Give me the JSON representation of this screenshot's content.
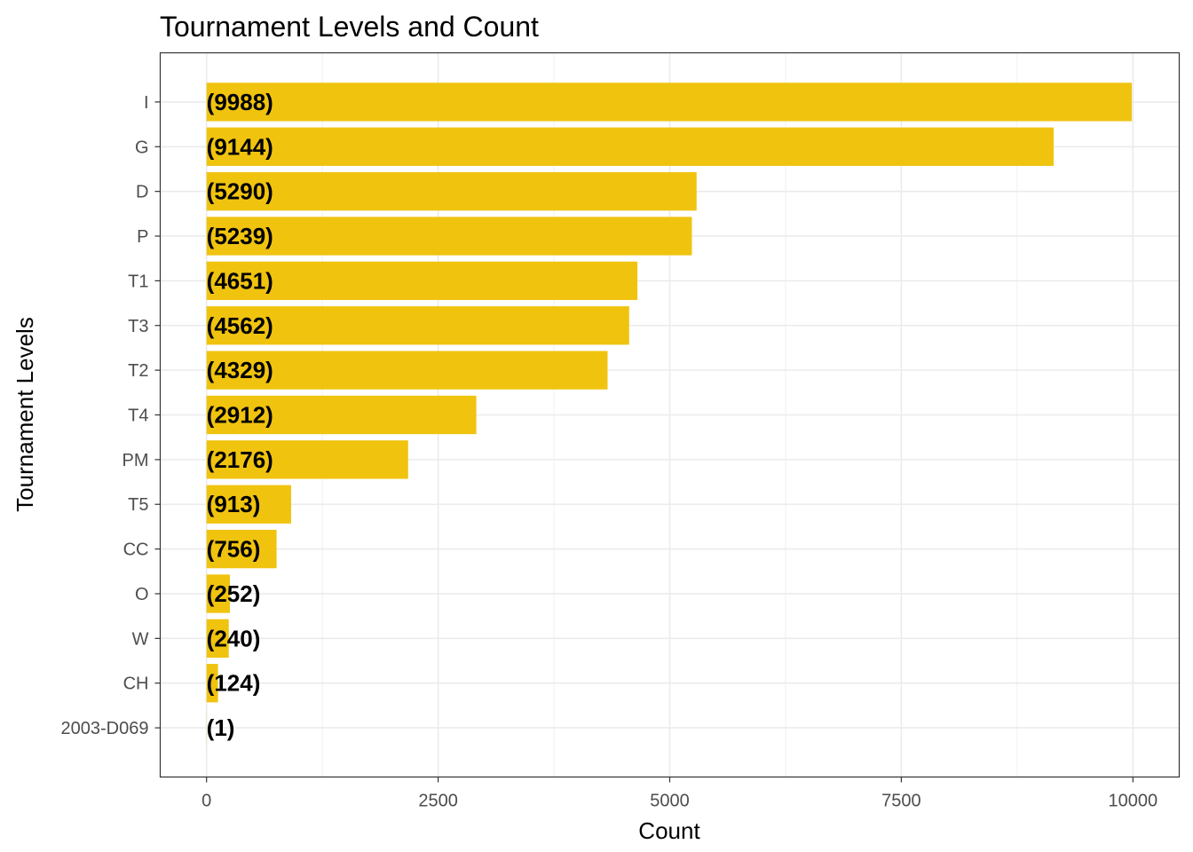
{
  "chart_data": {
    "type": "bar",
    "orientation": "horizontal",
    "title": "Tournament Levels and Count",
    "xlabel": "Count",
    "ylabel": "Tournament Levels",
    "categories": [
      "I",
      "G",
      "D",
      "P",
      "T1",
      "T3",
      "T2",
      "T4",
      "PM",
      "T5",
      "CC",
      "O",
      "W",
      "CH",
      "2003-D069"
    ],
    "values": [
      9988,
      9144,
      5290,
      5239,
      4651,
      4562,
      4329,
      2912,
      2176,
      913,
      756,
      252,
      240,
      124,
      1
    ],
    "data_labels": [
      "(9988)",
      "(9144)",
      "(5290)",
      "(5239)",
      "(4651)",
      "(4562)",
      "(4329)",
      "(2912)",
      "(2176)",
      "(913)",
      "(756)",
      "(252)",
      "(240)",
      "(124)",
      "(1)"
    ],
    "x_ticks": [
      0,
      2500,
      5000,
      7500,
      10000
    ],
    "x_tick_labels": [
      "0",
      "2500",
      "5000",
      "7500",
      "10000"
    ],
    "xlim": [
      -500,
      10500
    ],
    "grid": true,
    "legend": "none",
    "bar_color": "#F0C30F",
    "theme": "ggplot2 theme_bw"
  }
}
